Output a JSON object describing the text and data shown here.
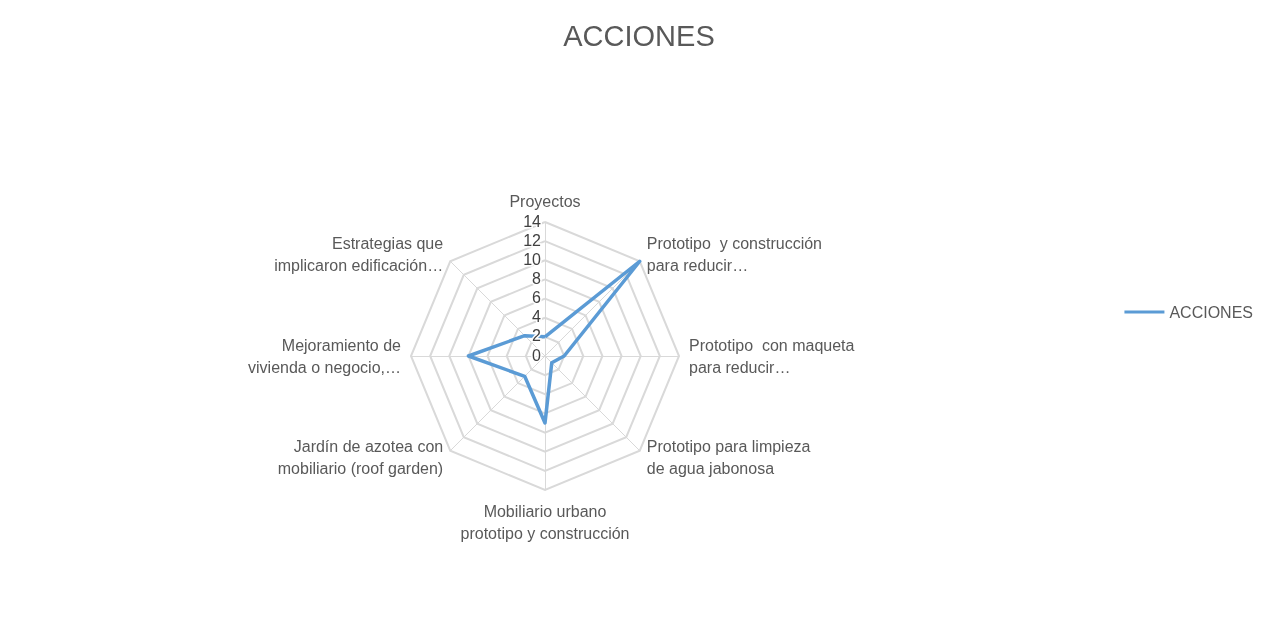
{
  "chart_data": {
    "type": "radar",
    "title": "ACCIONES",
    "categories": [
      "Proyectos",
      "Prototipo  y construcción\npara reducir…",
      "Prototipo  con maqueta\npara reducir…",
      "Prototipo para limpieza\nde agua jabonosa",
      "Mobiliario urbano\nprototipo y construcción",
      "Jardín de azotea con\nmobiliario (roof garden)",
      "Mejoramiento de\nvivienda o negocio,…",
      "Estrategias que\nimplicaron edificación…"
    ],
    "series": [
      {
        "name": "ACCIONES",
        "color": "#5b9bd5",
        "values": [
          2,
          14,
          2,
          1,
          7,
          3,
          8,
          3
        ]
      }
    ],
    "ylim": [
      0,
      14
    ],
    "yticks": [
      0,
      2,
      4,
      6,
      8,
      10,
      12,
      14
    ],
    "grid": true,
    "legend": "right",
    "marker": "none",
    "line_style": "solid"
  }
}
